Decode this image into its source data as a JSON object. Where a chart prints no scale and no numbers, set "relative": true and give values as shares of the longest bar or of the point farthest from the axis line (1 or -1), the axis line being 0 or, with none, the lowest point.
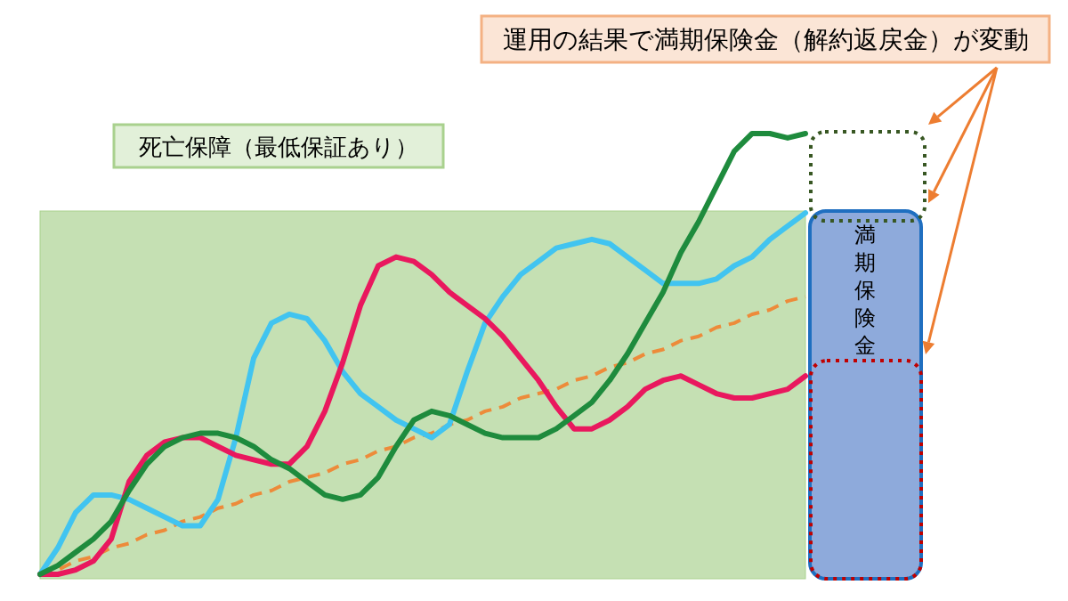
{
  "chart_data": {
    "type": "line",
    "relative": true,
    "categories": [
      null,
      null,
      null,
      null,
      null,
      null,
      null,
      null,
      null,
      null,
      null,
      null,
      null,
      null,
      null,
      null,
      null,
      null,
      null,
      null,
      null,
      null,
      null,
      null,
      null,
      null,
      null,
      null,
      null,
      null,
      null,
      null,
      null,
      null,
      null,
      null,
      null,
      null,
      null,
      null,
      null,
      null,
      null,
      null
    ],
    "series": [
      {
        "color": "#41c4f0",
        "values": [
          0,
          0.06,
          0.14,
          0.18,
          0.18,
          0.17,
          0.15,
          0.13,
          0.11,
          0.11,
          0.17,
          0.31,
          0.49,
          0.57,
          0.59,
          0.58,
          0.53,
          0.46,
          0.41,
          0.38,
          0.35,
          0.33,
          0.31,
          0.34,
          0.46,
          0.57,
          0.63,
          0.68,
          0.71,
          0.74,
          0.75,
          0.76,
          0.75,
          0.72,
          0.69,
          0.66,
          0.66,
          0.66,
          0.67,
          0.7,
          0.72,
          0.76,
          0.79,
          0.82
        ]
      },
      {
        "color": "#e9185e",
        "values": [
          0,
          0,
          0.01,
          0.03,
          0.08,
          0.21,
          0.27,
          0.3,
          0.31,
          0.31,
          0.29,
          0.27,
          0.26,
          0.25,
          0.25,
          0.29,
          0.37,
          0.48,
          0.61,
          0.7,
          0.72,
          0.71,
          0.68,
          0.64,
          0.61,
          0.58,
          0.54,
          0.49,
          0.44,
          0.38,
          0.33,
          0.33,
          0.35,
          0.38,
          0.42,
          0.44,
          0.45,
          0.43,
          0.41,
          0.4,
          0.4,
          0.41,
          0.42,
          0.45
        ]
      },
      {
        "color": "#1e8b3d",
        "values": [
          0,
          0.02,
          0.05,
          0.08,
          0.12,
          0.19,
          0.25,
          0.29,
          0.31,
          0.32,
          0.32,
          0.31,
          0.29,
          0.26,
          0.24,
          0.21,
          0.18,
          0.17,
          0.18,
          0.22,
          0.29,
          0.35,
          0.37,
          0.36,
          0.34,
          0.32,
          0.31,
          0.31,
          0.31,
          0.33,
          0.36,
          0.39,
          0.44,
          0.5,
          0.57,
          0.64,
          0.73,
          0.8,
          0.88,
          0.96,
          1.0,
          1.0,
          0.99,
          1.0
        ]
      },
      {
        "color": "#ed8b3a",
        "line_style": "dashed",
        "values": [
          0,
          0.01,
          0.03,
          0.04,
          0.06,
          0.07,
          0.09,
          0.1,
          0.12,
          0.13,
          0.15,
          0.16,
          0.18,
          0.19,
          0.21,
          0.22,
          0.23,
          0.25,
          0.26,
          0.28,
          0.29,
          0.31,
          0.32,
          0.34,
          0.35,
          0.37,
          0.38,
          0.4,
          0.41,
          0.42,
          0.44,
          0.45,
          0.47,
          0.48,
          0.5,
          0.51,
          0.53,
          0.54,
          0.56,
          0.57,
          0.59,
          0.6,
          0.62,
          0.63
        ]
      }
    ],
    "annotations": [
      "運用の結果で満期保険金（解約返戻金）が変動",
      "死亡保障（最低保証あり）",
      "満期保険金"
    ]
  }
}
